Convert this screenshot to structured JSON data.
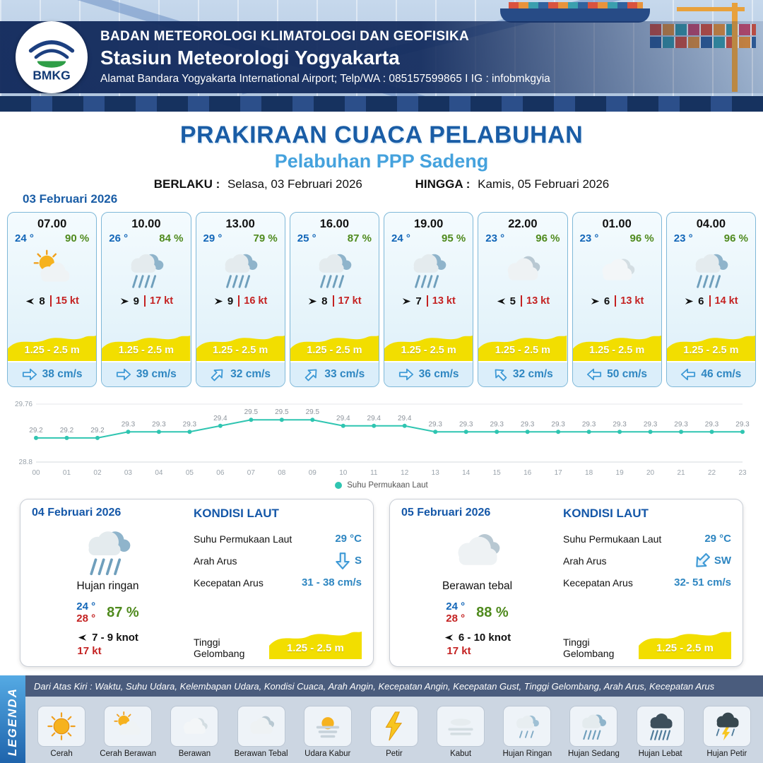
{
  "header": {
    "agency": "BADAN METEOROLOGI KLIMATOLOGI DAN GEOFISIKA",
    "station": "Stasiun Meteorologi Yogyakarta",
    "address": "Alamat Bandara Yogyakarta International Airport; Telp/WA : 085157599865 I IG : infobmkgyia",
    "logo_text": "BMKG"
  },
  "title": {
    "main": "PRAKIRAAN CUACA PELABUHAN",
    "sub": "Pelabuhan PPP Sadeng",
    "valid_from_label": "BERLAKU :",
    "valid_from": "Selasa, 03 Februari 2026",
    "valid_to_label": "HINGGA :",
    "valid_to": "Kamis, 05 Februari 2026"
  },
  "forecast_date": "03 Februari 2026",
  "colors": {
    "title_blue": "#1a5da6",
    "subtitle_blue": "#45a2dd",
    "temp_blue": "#1266b8",
    "humidity_green": "#4f8a1d",
    "gust_red": "#c42222",
    "current_blue": "#2e86c1",
    "wave_yellow": "#f2de00",
    "chart_line_teal": "#2fc5b1"
  },
  "cards": [
    {
      "time": "07.00",
      "temp": "24 °",
      "rh": "90 %",
      "icon": "cerah-berawan",
      "wind_rot": 180,
      "wind_val": "8",
      "wind_kt": "15 kt",
      "wave": "1.25 - 2.5 m",
      "cur_rot": 0,
      "cur_speed": "38 cm/s"
    },
    {
      "time": "10.00",
      "temp": "26 °",
      "rh": "84 %",
      "icon": "hujan-sedang",
      "wind_rot": 0,
      "wind_val": "9",
      "wind_kt": "17 kt",
      "wave": "1.25 - 2.5 m",
      "cur_rot": 0,
      "cur_speed": "39 cm/s"
    },
    {
      "time": "13.00",
      "temp": "29 °",
      "rh": "79 %",
      "icon": "hujan-sedang",
      "wind_rot": 0,
      "wind_val": "9",
      "wind_kt": "16 kt",
      "wave": "1.25 - 2.5 m",
      "cur_rot": -45,
      "cur_speed": "32 cm/s"
    },
    {
      "time": "16.00",
      "temp": "25 °",
      "rh": "87 %",
      "icon": "hujan-sedang",
      "wind_rot": 0,
      "wind_val": "8",
      "wind_kt": "17 kt",
      "wave": "1.25 - 2.5 m",
      "cur_rot": -45,
      "cur_speed": "33 cm/s"
    },
    {
      "time": "19.00",
      "temp": "24 °",
      "rh": "95 %",
      "icon": "hujan-sedang",
      "wind_rot": 0,
      "wind_val": "7",
      "wind_kt": "13 kt",
      "wave": "1.25 - 2.5 m",
      "cur_rot": 0,
      "cur_speed": "36 cm/s"
    },
    {
      "time": "22.00",
      "temp": "23 °",
      "rh": "96 %",
      "icon": "berawan-tebal",
      "wind_rot": 180,
      "wind_val": "5",
      "wind_kt": "13 kt",
      "wave": "1.25 - 2.5 m",
      "cur_rot": -135,
      "cur_speed": "32 cm/s"
    },
    {
      "time": "01.00",
      "temp": "23 °",
      "rh": "96 %",
      "icon": "berawan",
      "wind_rot": 0,
      "wind_val": "6",
      "wind_kt": "13 kt",
      "wave": "1.25 - 2.5 m",
      "cur_rot": 180,
      "cur_speed": "50 cm/s"
    },
    {
      "time": "04.00",
      "temp": "23 °",
      "rh": "96 %",
      "icon": "hujan-sedang",
      "wind_rot": 0,
      "wind_val": "6",
      "wind_kt": "14 kt",
      "wave": "1.25 - 2.5 m",
      "cur_rot": 180,
      "cur_speed": "46 cm/s"
    }
  ],
  "chart_data": {
    "type": "line",
    "series_name": "Suhu Permukaan Laut",
    "x": [
      "00",
      "01",
      "02",
      "03",
      "04",
      "05",
      "06",
      "07",
      "08",
      "09",
      "10",
      "11",
      "12",
      "13",
      "14",
      "15",
      "16",
      "17",
      "18",
      "19",
      "20",
      "21",
      "22",
      "23"
    ],
    "values": [
      29.2,
      29.2,
      29.2,
      29.3,
      29.3,
      29.3,
      29.4,
      29.5,
      29.5,
      29.5,
      29.4,
      29.4,
      29.4,
      29.3,
      29.3,
      29.3,
      29.3,
      29.3,
      29.3,
      29.3,
      29.3,
      29.3,
      29.3,
      29.3
    ],
    "ylim": [
      28.8,
      29.76
    ],
    "y_top_label": "29.76",
    "y_bottom_label": "28.8",
    "line_color": "#2fc5b1",
    "grid": "minimal",
    "legend_position": "bottom"
  },
  "daily": [
    {
      "date": "04 Februari 2026",
      "icon": "hujan-sedang",
      "condition": "Hujan ringan",
      "temp_min": "24 °",
      "temp_max": "28 °",
      "rh": "87 %",
      "wind_rot": 180,
      "wind_range": "7 - 9 knot",
      "gust": "17 kt",
      "sea": {
        "title": "KONDISI LAUT",
        "sst_label": "Suhu Permukaan Laut",
        "sst": "29 °C",
        "current_dir_label": "Arah Arus",
        "current_dir_rot": 90,
        "current_dir": "S",
        "current_speed_label": "Kecepatan Arus",
        "current_speed": "31 - 38 cm/s",
        "wave_label": "Tinggi Gelombang",
        "wave": "1.25 - 2.5 m"
      }
    },
    {
      "date": "05 Februari 2026",
      "icon": "berawan-tebal",
      "condition": "Berawan tebal",
      "temp_min": "24 °",
      "temp_max": "28 °",
      "rh": "88 %",
      "wind_rot": 180,
      "wind_range": "6 - 10 knot",
      "gust": "17 kt",
      "sea": {
        "title": "KONDISI LAUT",
        "sst_label": "Suhu Permukaan Laut",
        "sst": "29 °C",
        "current_dir_label": "Arah Arus",
        "current_dir_rot": 135,
        "current_dir": "SW",
        "current_speed_label": "Kecepatan Arus",
        "current_speed": "32- 51 cm/s",
        "wave_label": "Tinggi Gelombang",
        "wave": "1.25 - 2.5 m"
      }
    }
  ],
  "legend": {
    "label": "LEGENDA",
    "note": "Dari Atas Kiri : Waktu, Suhu Udara, Kelembapan Udara, Kondisi Cuaca, Arah Angin, Kecepatan Angin, Kecepatan Gust, Tinggi Gelombang, Arah Arus, Kecepatan Arus",
    "items": [
      {
        "label": "Cerah",
        "icon": "cerah"
      },
      {
        "label": "Cerah Berawan",
        "icon": "cerah-berawan"
      },
      {
        "label": "Berawan",
        "icon": "berawan"
      },
      {
        "label": "Berawan Tebal",
        "icon": "berawan-tebal"
      },
      {
        "label": "Udara Kabur",
        "icon": "udara-kabur"
      },
      {
        "label": "Petir",
        "icon": "petir"
      },
      {
        "label": "Kabut",
        "icon": "kabut"
      },
      {
        "label": "Hujan Ringan",
        "icon": "hujan-ringan"
      },
      {
        "label": "Hujan Sedang",
        "icon": "hujan-sedang"
      },
      {
        "label": "Hujan Lebat",
        "icon": "hujan-lebat"
      },
      {
        "label": "Hujan Petir",
        "icon": "hujan-petir"
      }
    ]
  }
}
